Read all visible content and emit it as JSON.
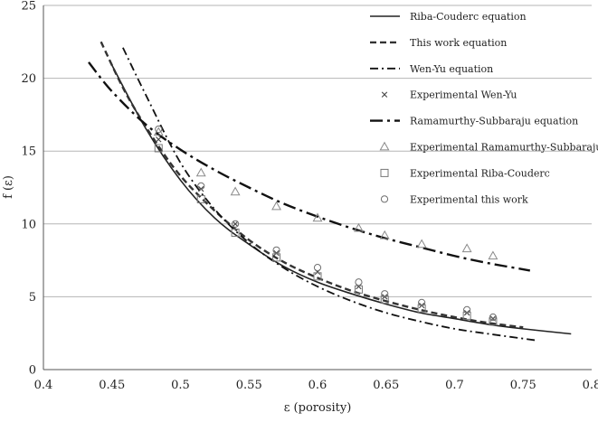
{
  "chart_data": {
    "type": "scatter",
    "xlabel": "ε (porosity)",
    "ylabel": "f (ε)",
    "xlim": [
      0.4,
      0.8
    ],
    "ylim": [
      0,
      25
    ],
    "xticks": [
      "0.4",
      "0.45",
      "0.5",
      "0.55",
      "0.6",
      "0.65",
      "0.7",
      "0.75",
      "0.8"
    ],
    "yticks": [
      "0",
      "5",
      "10",
      "15",
      "20",
      "25"
    ],
    "grid": "horizontal",
    "legend_position": "top-right",
    "series": [
      {
        "name": "Riba-Couderc equation",
        "kind": "line",
        "style": "solid",
        "x": [
          0.45,
          0.475,
          0.5,
          0.525,
          0.55,
          0.575,
          0.6,
          0.625,
          0.65,
          0.675,
          0.7,
          0.725,
          0.75,
          0.785
        ],
        "y": [
          20.9,
          16.5,
          13.0,
          10.4,
          8.6,
          7.1,
          6.0,
          5.2,
          4.5,
          3.9,
          3.5,
          3.1,
          2.8,
          2.45
        ]
      },
      {
        "name": "This work equation",
        "kind": "line",
        "style": "dashed",
        "x": [
          0.442,
          0.46,
          0.48,
          0.5,
          0.525,
          0.55,
          0.575,
          0.6,
          0.625,
          0.65,
          0.675,
          0.7,
          0.725,
          0.75
        ],
        "y": [
          22.5,
          19.0,
          15.9,
          13.3,
          10.9,
          8.9,
          7.4,
          6.3,
          5.4,
          4.7,
          4.1,
          3.6,
          3.2,
          2.9
        ]
      },
      {
        "name": "Wen-Yu equation",
        "kind": "line",
        "style": "dashdot",
        "x": [
          0.458,
          0.475,
          0.5,
          0.525,
          0.55,
          0.575,
          0.6,
          0.625,
          0.65,
          0.675,
          0.7,
          0.725,
          0.76
        ],
        "y": [
          22.1,
          18.8,
          14.2,
          11.0,
          8.7,
          7.0,
          5.7,
          4.7,
          3.9,
          3.3,
          2.8,
          2.45,
          2.0
        ]
      },
      {
        "name": "Experimental Wen-Yu",
        "kind": "points",
        "marker": "x",
        "x": [
          0.484,
          0.515,
          0.54,
          0.57,
          0.6,
          0.63,
          0.649,
          0.676,
          0.709,
          0.728
        ],
        "y": [
          15.8,
          12.4,
          10.0,
          8.0,
          6.7,
          5.7,
          5.0,
          4.4,
          3.9,
          3.5
        ]
      },
      {
        "name": "Ramamurthy-Subbaraju equation",
        "kind": "line",
        "style": "longdashdot",
        "x": [
          0.433,
          0.45,
          0.475,
          0.5,
          0.525,
          0.55,
          0.575,
          0.6,
          0.625,
          0.65,
          0.675,
          0.7,
          0.725,
          0.755
        ],
        "y": [
          21.1,
          19.1,
          16.8,
          15.1,
          13.7,
          12.5,
          11.4,
          10.5,
          9.7,
          9.0,
          8.4,
          7.8,
          7.3,
          6.8
        ]
      },
      {
        "name": "Experimental Ramamurthy-Subbaraju",
        "kind": "points",
        "marker": "triangle",
        "x": [
          0.484,
          0.515,
          0.54,
          0.57,
          0.6,
          0.63,
          0.649,
          0.676,
          0.709,
          0.728
        ],
        "y": [
          16.3,
          13.5,
          12.2,
          11.2,
          10.4,
          9.7,
          9.2,
          8.6,
          8.3,
          7.8
        ]
      },
      {
        "name": "Experimental Riba-Couderc",
        "kind": "points",
        "marker": "square",
        "x": [
          0.484,
          0.515,
          0.54,
          0.57,
          0.6,
          0.63,
          0.649,
          0.676,
          0.709,
          0.728
        ],
        "y": [
          15.2,
          11.7,
          9.4,
          7.7,
          6.4,
          5.5,
          4.8,
          4.2,
          3.7,
          3.3
        ]
      },
      {
        "name": "Experimental this work",
        "kind": "points",
        "marker": "circle",
        "x": [
          0.484,
          0.515,
          0.54,
          0.57,
          0.6,
          0.63,
          0.649,
          0.676,
          0.709,
          0.728
        ],
        "y": [
          16.5,
          12.6,
          10.0,
          8.2,
          7.0,
          6.0,
          5.2,
          4.6,
          4.1,
          3.6
        ]
      }
    ]
  }
}
